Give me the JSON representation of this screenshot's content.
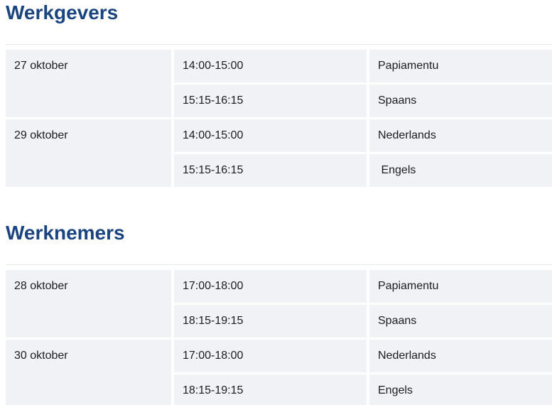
{
  "colors": {
    "heading": "#1a4480",
    "cell_background": "#f1f2f6",
    "divider": "#e7e7e7",
    "text": "#1c1c1c"
  },
  "sections": [
    {
      "title": "Werkgevers",
      "groups": [
        {
          "date": "27 oktober",
          "sessions": [
            {
              "time": "14:00-15:00",
              "language": "Papiamentu"
            },
            {
              "time": "15:15-16:15",
              "language": "Spaans"
            }
          ]
        },
        {
          "date": "29 oktober",
          "sessions": [
            {
              "time": "14:00-15:00",
              "language": "Nederlands"
            },
            {
              "time": "15:15-16:15",
              "language": " Engels"
            }
          ]
        }
      ]
    },
    {
      "title": "Werknemers",
      "groups": [
        {
          "date": "28 oktober",
          "sessions": [
            {
              "time": "17:00-18:00",
              "language": "Papiamentu"
            },
            {
              "time": "18:15-19:15",
              "language": "Spaans"
            }
          ]
        },
        {
          "date": "30 oktober",
          "sessions": [
            {
              "time": "17:00-18:00",
              "language": "Nederlands"
            },
            {
              "time": "18:15-19:15",
              "language": "Engels"
            }
          ]
        }
      ]
    }
  ]
}
